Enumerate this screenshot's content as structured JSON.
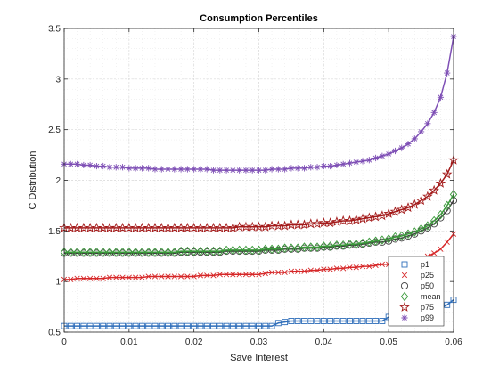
{
  "chart_data": {
    "type": "line",
    "title": "Consumption Percentiles",
    "xlabel": "Save Interest",
    "ylabel": "C Distribution",
    "xlim": [
      0,
      0.06
    ],
    "ylim": [
      0.5,
      3.5
    ],
    "xticks": [
      0,
      0.01,
      0.02,
      0.03,
      0.04,
      0.05,
      0.06
    ],
    "xtick_labels": [
      "0",
      "0.01",
      "0.02",
      "0.03",
      "0.04",
      "0.05",
      "0.06"
    ],
    "yticks": [
      0.5,
      1,
      1.5,
      2,
      2.5,
      3,
      3.5
    ],
    "ytick_labels": [
      "0.5",
      "1",
      "1.5",
      "2",
      "2.5",
      "3",
      "3.5"
    ],
    "grid": true,
    "minor_grid": true,
    "legend_position": "bottom-right",
    "x": [
      0,
      0.001,
      0.002,
      0.003,
      0.004,
      0.005,
      0.006,
      0.007,
      0.008,
      0.009,
      0.01,
      0.011,
      0.012,
      0.013,
      0.014,
      0.015,
      0.016,
      0.017,
      0.018,
      0.019,
      0.02,
      0.021,
      0.022,
      0.023,
      0.024,
      0.025,
      0.026,
      0.027,
      0.028,
      0.029,
      0.03,
      0.031,
      0.032,
      0.033,
      0.034,
      0.035,
      0.036,
      0.037,
      0.038,
      0.039,
      0.04,
      0.041,
      0.042,
      0.043,
      0.044,
      0.045,
      0.046,
      0.047,
      0.048,
      0.049,
      0.05,
      0.051,
      0.052,
      0.053,
      0.054,
      0.055,
      0.056,
      0.057,
      0.058,
      0.059,
      0.06
    ],
    "series": [
      {
        "name": "p1",
        "marker": "square",
        "color": "#2f6eba",
        "values": [
          0.56,
          0.56,
          0.56,
          0.56,
          0.56,
          0.56,
          0.56,
          0.56,
          0.56,
          0.56,
          0.56,
          0.56,
          0.56,
          0.56,
          0.56,
          0.56,
          0.56,
          0.56,
          0.56,
          0.56,
          0.56,
          0.56,
          0.56,
          0.56,
          0.56,
          0.56,
          0.56,
          0.56,
          0.56,
          0.56,
          0.56,
          0.56,
          0.56,
          0.59,
          0.6,
          0.61,
          0.61,
          0.61,
          0.61,
          0.61,
          0.61,
          0.61,
          0.61,
          0.61,
          0.61,
          0.61,
          0.61,
          0.61,
          0.61,
          0.61,
          0.65,
          0.65,
          0.65,
          0.65,
          0.65,
          0.66,
          0.7,
          0.72,
          0.74,
          0.77,
          0.82
        ]
      },
      {
        "name": "p25",
        "marker": "x",
        "color": "#d62728",
        "values": [
          1.02,
          1.02,
          1.03,
          1.03,
          1.03,
          1.03,
          1.03,
          1.04,
          1.04,
          1.04,
          1.04,
          1.04,
          1.04,
          1.05,
          1.05,
          1.05,
          1.05,
          1.05,
          1.05,
          1.05,
          1.05,
          1.06,
          1.06,
          1.06,
          1.07,
          1.07,
          1.07,
          1.07,
          1.07,
          1.07,
          1.07,
          1.08,
          1.09,
          1.09,
          1.09,
          1.1,
          1.1,
          1.1,
          1.11,
          1.11,
          1.12,
          1.12,
          1.13,
          1.13,
          1.14,
          1.14,
          1.15,
          1.15,
          1.16,
          1.17,
          1.17,
          1.18,
          1.19,
          1.2,
          1.21,
          1.23,
          1.25,
          1.28,
          1.32,
          1.39,
          1.47
        ]
      },
      {
        "name": "p50",
        "marker": "circle",
        "color": "#404040",
        "values": [
          1.28,
          1.28,
          1.28,
          1.28,
          1.28,
          1.28,
          1.28,
          1.28,
          1.28,
          1.28,
          1.28,
          1.28,
          1.28,
          1.28,
          1.28,
          1.28,
          1.28,
          1.28,
          1.29,
          1.29,
          1.29,
          1.29,
          1.29,
          1.29,
          1.29,
          1.3,
          1.3,
          1.3,
          1.3,
          1.3,
          1.3,
          1.31,
          1.31,
          1.31,
          1.32,
          1.32,
          1.32,
          1.33,
          1.33,
          1.33,
          1.34,
          1.34,
          1.35,
          1.35,
          1.36,
          1.36,
          1.37,
          1.38,
          1.39,
          1.39,
          1.4,
          1.42,
          1.43,
          1.45,
          1.47,
          1.5,
          1.53,
          1.57,
          1.63,
          1.7,
          1.8
        ]
      },
      {
        "name": "mean",
        "marker": "diamond",
        "color": "#3a9a3a",
        "values": [
          1.29,
          1.29,
          1.29,
          1.29,
          1.29,
          1.29,
          1.29,
          1.29,
          1.29,
          1.29,
          1.29,
          1.29,
          1.29,
          1.29,
          1.29,
          1.29,
          1.29,
          1.29,
          1.3,
          1.3,
          1.3,
          1.3,
          1.3,
          1.3,
          1.3,
          1.31,
          1.31,
          1.31,
          1.31,
          1.31,
          1.31,
          1.32,
          1.32,
          1.32,
          1.33,
          1.33,
          1.33,
          1.34,
          1.34,
          1.34,
          1.35,
          1.35,
          1.36,
          1.36,
          1.37,
          1.37,
          1.38,
          1.39,
          1.4,
          1.41,
          1.42,
          1.44,
          1.45,
          1.47,
          1.49,
          1.52,
          1.55,
          1.6,
          1.66,
          1.75,
          1.86
        ]
      },
      {
        "name": "p75",
        "marker": "pentagram",
        "color": "#a31a1a",
        "values": [
          1.53,
          1.53,
          1.53,
          1.53,
          1.53,
          1.53,
          1.53,
          1.53,
          1.53,
          1.53,
          1.53,
          1.53,
          1.53,
          1.53,
          1.53,
          1.53,
          1.53,
          1.53,
          1.53,
          1.53,
          1.53,
          1.53,
          1.53,
          1.53,
          1.53,
          1.53,
          1.53,
          1.54,
          1.54,
          1.54,
          1.54,
          1.54,
          1.55,
          1.55,
          1.55,
          1.56,
          1.56,
          1.56,
          1.57,
          1.57,
          1.58,
          1.58,
          1.59,
          1.6,
          1.6,
          1.61,
          1.62,
          1.63,
          1.64,
          1.65,
          1.67,
          1.69,
          1.71,
          1.73,
          1.76,
          1.8,
          1.84,
          1.9,
          1.97,
          2.06,
          2.2
        ]
      },
      {
        "name": "p99",
        "marker": "asterisk",
        "color": "#7e4fb5",
        "values": [
          2.16,
          2.16,
          2.16,
          2.15,
          2.15,
          2.14,
          2.14,
          2.13,
          2.13,
          2.13,
          2.12,
          2.12,
          2.12,
          2.12,
          2.11,
          2.11,
          2.11,
          2.11,
          2.11,
          2.11,
          2.11,
          2.11,
          2.11,
          2.1,
          2.1,
          2.1,
          2.1,
          2.1,
          2.1,
          2.1,
          2.1,
          2.1,
          2.11,
          2.11,
          2.11,
          2.12,
          2.12,
          2.12,
          2.13,
          2.13,
          2.14,
          2.14,
          2.15,
          2.16,
          2.17,
          2.18,
          2.19,
          2.2,
          2.22,
          2.24,
          2.26,
          2.29,
          2.32,
          2.36,
          2.41,
          2.48,
          2.56,
          2.67,
          2.82,
          3.06,
          3.42
        ]
      }
    ]
  }
}
